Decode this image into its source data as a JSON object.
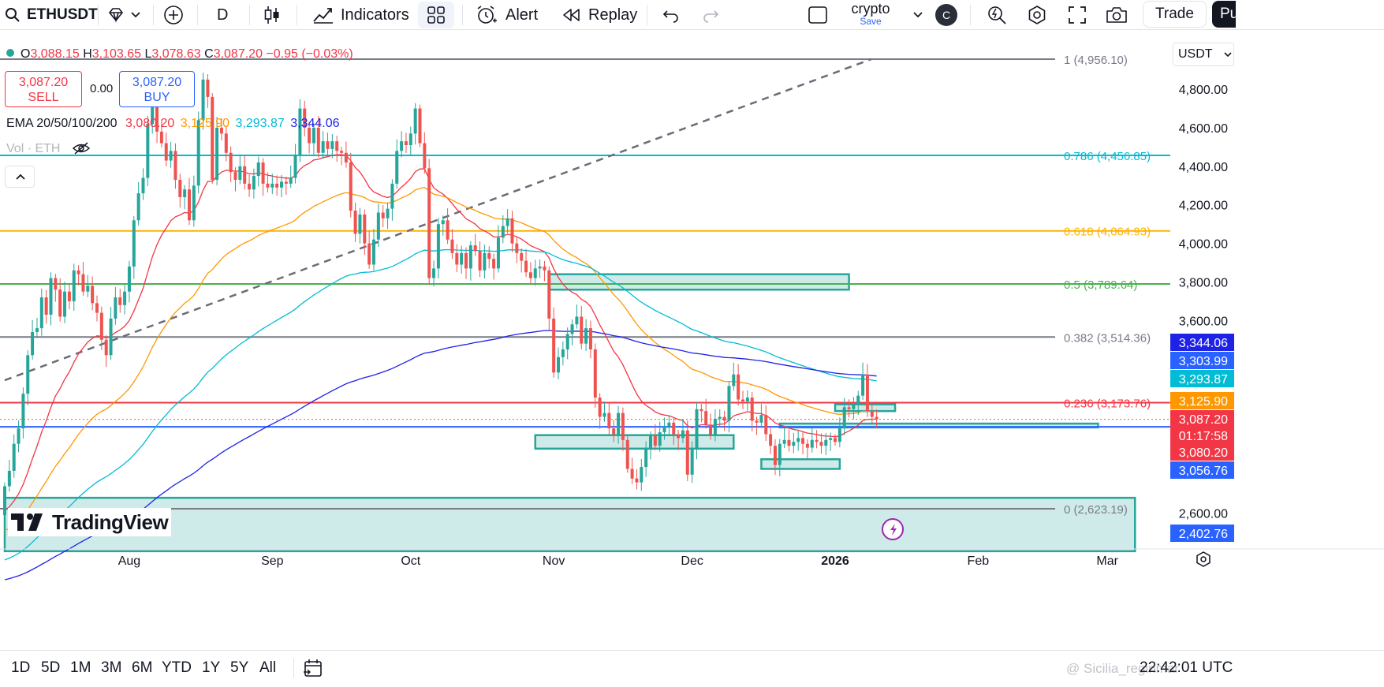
{
  "toolbar": {
    "symbol": "ETHUSDT",
    "interval": "D",
    "indicators_label": "Indicators",
    "alert_label": "Alert",
    "replay_label": "Replay",
    "layout_name": "crypto",
    "layout_save": "Save",
    "avatar_letter": "C",
    "trade_label": "Trade",
    "publish_label": "Pu"
  },
  "legend": {
    "ohlc": {
      "o_label": "O",
      "o": "3,088.15",
      "h_label": "H",
      "h": "3,103.65",
      "l_label": "L",
      "l": "3,078.63",
      "c_label": "C",
      "c": "3,087.20",
      "change": "−0.95 (−0.03%)"
    },
    "sell_price": "3,087.20",
    "sell_label": "SELL",
    "spread": "0.00",
    "buy_price": "3,087.20",
    "buy_label": "BUY",
    "ema_label": "EMA 20/50/100/200",
    "ema_values": [
      "3,080.20",
      "3,125.90",
      "3,293.87",
      "3,344.06"
    ],
    "vol_label": "Vol · ETH",
    "watermark": "TradingView"
  },
  "colors": {
    "up": "#26a69a",
    "down": "#ef5350",
    "ema20": "#f23645",
    "ema50": "#ff9800",
    "ema100": "#00bcd4",
    "ema200": "#1e22e6",
    "fib_1": "#787b86",
    "fib_786": "#00bcd4",
    "fib_618": "#ffb300",
    "fib_5": "#4caf50",
    "fib_382": "#787b86",
    "fib_236": "#f23645",
    "fib_0": "#787b86",
    "zone": "#26a69a",
    "support_line": "#2962ff"
  },
  "chart_data": {
    "type": "candlestick",
    "symbol": "ETHUSDT",
    "interval": "1D",
    "currency": "USDT",
    "ylim": [
      2240,
      5150
    ],
    "y_ticks": [
      {
        "value": 4800,
        "label": "4,800.00"
      },
      {
        "value": 4600,
        "label": "4,600.00"
      },
      {
        "value": 4400,
        "label": "4,400.00"
      },
      {
        "value": 4200,
        "label": "4,200.00"
      },
      {
        "value": 4000,
        "label": "4,000.00"
      },
      {
        "value": 3800,
        "label": "3,800.00"
      },
      {
        "value": 3600,
        "label": "3,600.00"
      },
      {
        "value": 2600,
        "label": "2,600.00"
      }
    ],
    "x_labels": [
      {
        "label": "Aug",
        "day": 27
      },
      {
        "label": "Sep",
        "day": 58
      },
      {
        "label": "Oct",
        "day": 88
      },
      {
        "label": "Nov",
        "day": 119
      },
      {
        "label": "Dec",
        "day": 149
      },
      {
        "label": "2026",
        "day": 180
      },
      {
        "label": "Feb",
        "day": 211
      },
      {
        "label": "Mar",
        "day": 239
      }
    ],
    "fib_levels": [
      {
        "ratio": "1",
        "price": 4956.1,
        "label": "1 (4,956.10)",
        "color_key": "fib_1"
      },
      {
        "ratio": "0.786",
        "price": 4456.85,
        "label": "0.786 (4,456.85)",
        "color_key": "fib_786"
      },
      {
        "ratio": "0.618",
        "price": 4064.93,
        "label": "0.618 (4,064.93)",
        "color_key": "fib_618"
      },
      {
        "ratio": "0.5",
        "price": 3789.64,
        "label": "0.5 (3,789.64)",
        "color_key": "fib_5"
      },
      {
        "ratio": "0.382",
        "price": 3514.36,
        "label": "0.382 (3,514.36)",
        "color_key": "fib_382"
      },
      {
        "ratio": "0.236",
        "price": 3173.76,
        "label": "0.236 (3,173.76)",
        "color_key": "fib_236"
      },
      {
        "ratio": "0",
        "price": 2623.19,
        "label": "0 (2,623.19)",
        "color_key": "fib_0"
      }
    ],
    "price_badges": [
      {
        "label": "3,344.06",
        "bg": "#1e22e6",
        "fg": "#ffffff"
      },
      {
        "label": "3,303.99",
        "bg": "#2962ff",
        "fg": "#ffffff"
      },
      {
        "label": "3,293.87",
        "bg": "#00bcd4",
        "fg": "#ffffff"
      },
      {
        "label": "3,125.90",
        "bg": "#ff9800",
        "fg": "#ffffff"
      },
      {
        "label": "3,087.20",
        "bg": "#f23645",
        "fg": "#ffffff"
      },
      {
        "label": "01:17:58",
        "bg": "#f23645",
        "fg": "#ffffff"
      },
      {
        "label": "3,080.20",
        "bg": "#f23645",
        "fg": "#ffffff"
      },
      {
        "label": "3,056.76",
        "bg": "#2962ff",
        "fg": "#ffffff"
      },
      {
        "label": "2,402.76",
        "bg": "#2962ff",
        "fg": "#ffffff"
      }
    ],
    "current_price": 3087.2,
    "support_line_price": 3056.76,
    "trendline": {
      "from": {
        "day": 0,
        "price": 3290
      },
      "to": {
        "day": 187,
        "price": 4956.1
      },
      "style": "dashed"
    },
    "zones": [
      {
        "d1": 0,
        "d2": 245,
        "p_low": 2402.76,
        "p_high": 2680
      },
      {
        "d1": 118,
        "d2": 183,
        "p_low": 3760,
        "p_high": 3840
      },
      {
        "d1": 115,
        "d2": 158,
        "p_low": 2935,
        "p_high": 3005
      },
      {
        "d1": 164,
        "d2": 181,
        "p_low": 2830,
        "p_high": 2880
      },
      {
        "d1": 168,
        "d2": 237,
        "p_low": 3045,
        "p_high": 3065
      },
      {
        "d1": 180,
        "d2": 193,
        "p_low": 3130,
        "p_high": 3165
      }
    ],
    "candles": [
      [
        2590,
        2740
      ],
      [
        2740,
        2820
      ],
      [
        2820,
        2960
      ],
      [
        2960,
        3040
      ],
      [
        3040,
        3220
      ],
      [
        3220,
        3420
      ],
      [
        3420,
        3540
      ],
      [
        3540,
        3560
      ],
      [
        3560,
        3720
      ],
      [
        3720,
        3630
      ],
      [
        3630,
        3820
      ],
      [
        3820,
        3760
      ],
      [
        3760,
        3620
      ],
      [
        3620,
        3750
      ],
      [
        3750,
        3700
      ],
      [
        3700,
        3860
      ],
      [
        3860,
        3840
      ],
      [
        3840,
        3750
      ],
      [
        3750,
        3780
      ],
      [
        3780,
        3690
      ],
      [
        3690,
        3640
      ],
      [
        3640,
        3500
      ],
      [
        3500,
        3420
      ],
      [
        3420,
        3610
      ],
      [
        3610,
        3720
      ],
      [
        3720,
        3680
      ],
      [
        3680,
        3750
      ],
      [
        3750,
        3880
      ],
      [
        3880,
        4120
      ],
      [
        4120,
        4260
      ],
      [
        4260,
        4340
      ],
      [
        4340,
        4620
      ],
      [
        4620,
        4710
      ],
      [
        4710,
        4580
      ],
      [
        4580,
        4520
      ],
      [
        4520,
        4430
      ],
      [
        4430,
        4480
      ],
      [
        4480,
        4330
      ],
      [
        4330,
        4240
      ],
      [
        4240,
        4280
      ],
      [
        4280,
        4120
      ],
      [
        4120,
        4300
      ],
      [
        4300,
        4640
      ],
      [
        4640,
        4850
      ],
      [
        4850,
        4760
      ],
      [
        4760,
        4330
      ],
      [
        4330,
        4600
      ],
      [
        4600,
        4570
      ],
      [
        4570,
        4470
      ],
      [
        4470,
        4370
      ],
      [
        4370,
        4330
      ],
      [
        4330,
        4400
      ],
      [
        4400,
        4310
      ],
      [
        4310,
        4280
      ],
      [
        4280,
        4350
      ],
      [
        4350,
        4420
      ],
      [
        4420,
        4310
      ],
      [
        4310,
        4290
      ],
      [
        4290,
        4310
      ],
      [
        4310,
        4290
      ],
      [
        4290,
        4320
      ],
      [
        4320,
        4310
      ],
      [
        4310,
        4340
      ],
      [
        4340,
        4460
      ],
      [
        4460,
        4700
      ],
      [
        4700,
        4600
      ],
      [
        4600,
        4520
      ],
      [
        4520,
        4600
      ],
      [
        4600,
        4470
      ],
      [
        4470,
        4530
      ],
      [
        4530,
        4490
      ],
      [
        4490,
        4530
      ],
      [
        4530,
        4480
      ],
      [
        4480,
        4470
      ],
      [
        4470,
        4420
      ],
      [
        4420,
        4170
      ],
      [
        4170,
        4050
      ],
      [
        4050,
        4150
      ],
      [
        4150,
        4000
      ],
      [
        4000,
        3890
      ],
      [
        3890,
        4020
      ],
      [
        4020,
        4160
      ],
      [
        4160,
        4130
      ],
      [
        4130,
        4180
      ],
      [
        4180,
        4310
      ],
      [
        4310,
        4480
      ],
      [
        4480,
        4530
      ],
      [
        4530,
        4510
      ],
      [
        4510,
        4570
      ],
      [
        4570,
        4700
      ],
      [
        4700,
        4520
      ],
      [
        4520,
        4390
      ],
      [
        4390,
        3820
      ],
      [
        3820,
        3870
      ],
      [
        3870,
        4100
      ],
      [
        4100,
        4120
      ],
      [
        4120,
        4020
      ],
      [
        4020,
        3950
      ],
      [
        3950,
        3890
      ],
      [
        3890,
        3950
      ],
      [
        3950,
        3870
      ],
      [
        3870,
        3990
      ],
      [
        3990,
        3960
      ],
      [
        3960,
        3860
      ],
      [
        3860,
        3950
      ],
      [
        3950,
        3920
      ],
      [
        3920,
        3870
      ],
      [
        3870,
        4030
      ],
      [
        4030,
        4090
      ],
      [
        4090,
        4130
      ],
      [
        4130,
        4000
      ],
      [
        4000,
        3950
      ],
      [
        3950,
        3910
      ],
      [
        3910,
        3850
      ],
      [
        3850,
        3820
      ],
      [
        3820,
        3870
      ],
      [
        3870,
        3880
      ],
      [
        3880,
        3860
      ],
      [
        3860,
        3610
      ],
      [
        3610,
        3330
      ],
      [
        3330,
        3410
      ],
      [
        3410,
        3450
      ],
      [
        3450,
        3530
      ],
      [
        3530,
        3580
      ],
      [
        3580,
        3620
      ],
      [
        3620,
        3480
      ],
      [
        3480,
        3560
      ],
      [
        3560,
        3450
      ],
      [
        3450,
        3200
      ],
      [
        3200,
        3100
      ],
      [
        3100,
        3120
      ],
      [
        3120,
        3040
      ],
      [
        3040,
        3010
      ],
      [
        3010,
        3120
      ],
      [
        3120,
        2980
      ],
      [
        2980,
        2830
      ],
      [
        2830,
        2780
      ],
      [
        2780,
        2760
      ],
      [
        2760,
        2840
      ],
      [
        2840,
        2940
      ],
      [
        2940,
        3000
      ],
      [
        3000,
        2950
      ],
      [
        2950,
        3020
      ],
      [
        3020,
        3050
      ],
      [
        3050,
        3070
      ],
      [
        3070,
        3010
      ],
      [
        3010,
        2990
      ],
      [
        2990,
        3030
      ],
      [
        3030,
        2800
      ],
      [
        2800,
        2930
      ],
      [
        2930,
        3140
      ],
      [
        3140,
        3130
      ],
      [
        3130,
        3060
      ],
      [
        3060,
        3010
      ],
      [
        3010,
        3090
      ],
      [
        3090,
        3100
      ],
      [
        3100,
        3080
      ],
      [
        3080,
        3260
      ],
      [
        3260,
        3320
      ],
      [
        3320,
        3190
      ],
      [
        3190,
        3180
      ],
      [
        3180,
        3200
      ],
      [
        3200,
        3080
      ],
      [
        3080,
        3070
      ],
      [
        3070,
        3110
      ],
      [
        3110,
        3010
      ],
      [
        3010,
        2950
      ],
      [
        2950,
        2850
      ],
      [
        2850,
        2960
      ],
      [
        2960,
        2980
      ],
      [
        2980,
        2950
      ],
      [
        2950,
        2970
      ],
      [
        2970,
        2990
      ],
      [
        2990,
        2960
      ],
      [
        2960,
        2940
      ],
      [
        2940,
        2980
      ],
      [
        2980,
        2970
      ],
      [
        2970,
        2950
      ],
      [
        2950,
        2980
      ],
      [
        2980,
        2990
      ],
      [
        2990,
        2970
      ],
      [
        2970,
        3040
      ],
      [
        3040,
        3150
      ],
      [
        3150,
        3140
      ],
      [
        3140,
        3170
      ],
      [
        3170,
        3210
      ],
      [
        3210,
        3320
      ],
      [
        3320,
        3130
      ],
      [
        3130,
        3100
      ],
      [
        3100,
        3087.2
      ]
    ]
  },
  "bottombar": {
    "ranges": [
      "1D",
      "5D",
      "1M",
      "3M",
      "6M",
      "YTD",
      "1Y",
      "5Y",
      "All"
    ],
    "clock": "22:42:01 UTC",
    "credit": "Sicilia_reginmar"
  }
}
